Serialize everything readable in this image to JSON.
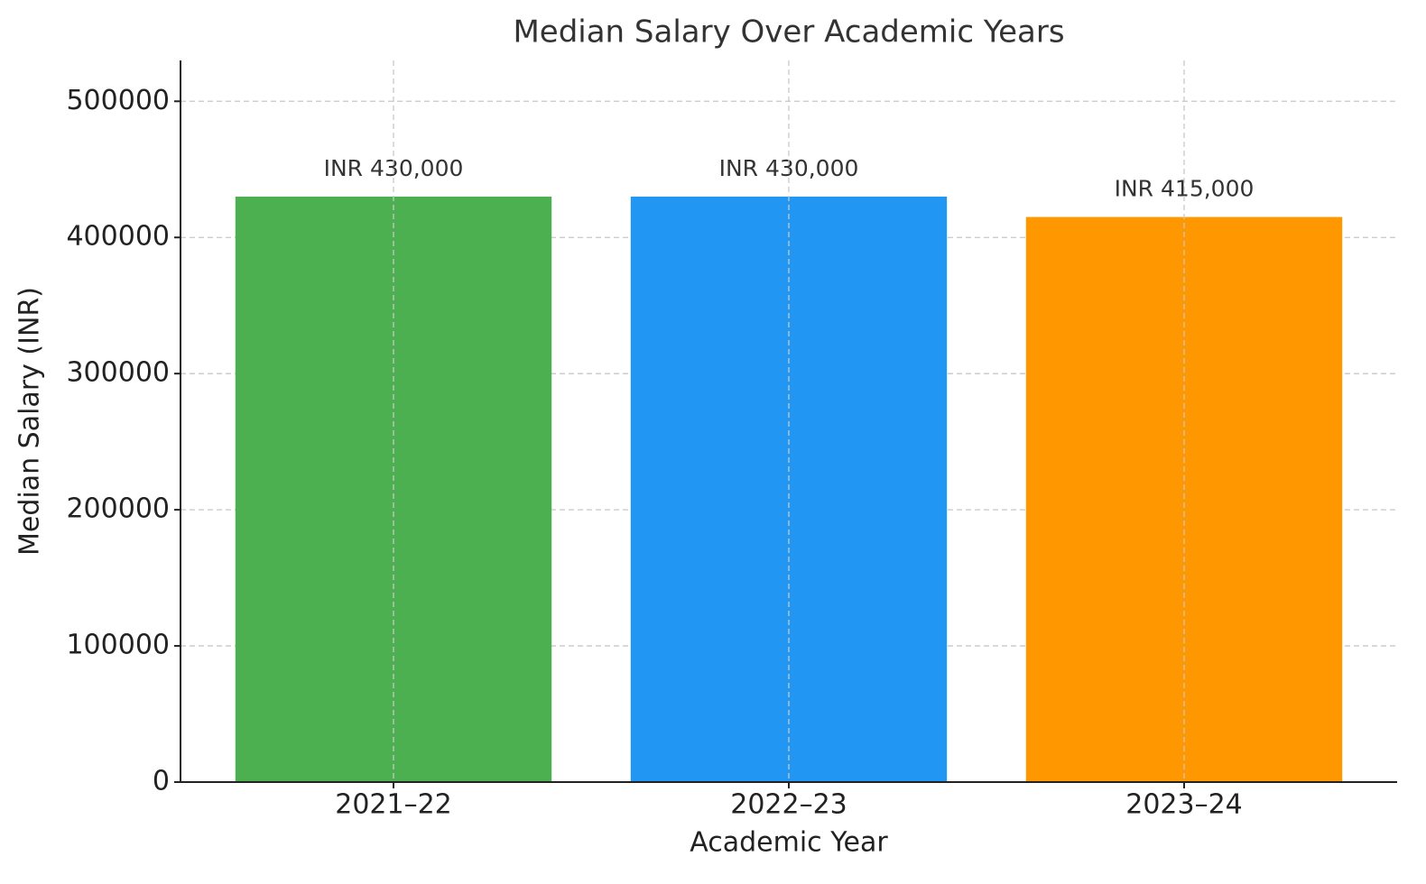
{
  "chart_data": {
    "type": "bar",
    "title": "Median Salary Over Academic Years",
    "x_label": "Academic Year",
    "y_label": "Median Salary (INR)",
    "categories": [
      "2021–22",
      "2022–23",
      "2023–24"
    ],
    "values": [
      430000,
      430000,
      415000
    ],
    "value_labels": [
      "INR 430,000",
      "INR 430,000",
      "INR 415,000"
    ],
    "colors": [
      "#4caf50",
      "#2196f3",
      "#ff9800"
    ],
    "ylim": [
      0,
      530000
    ],
    "yticks": [
      0,
      100000,
      200000,
      300000,
      400000,
      500000
    ],
    "grid": true
  }
}
